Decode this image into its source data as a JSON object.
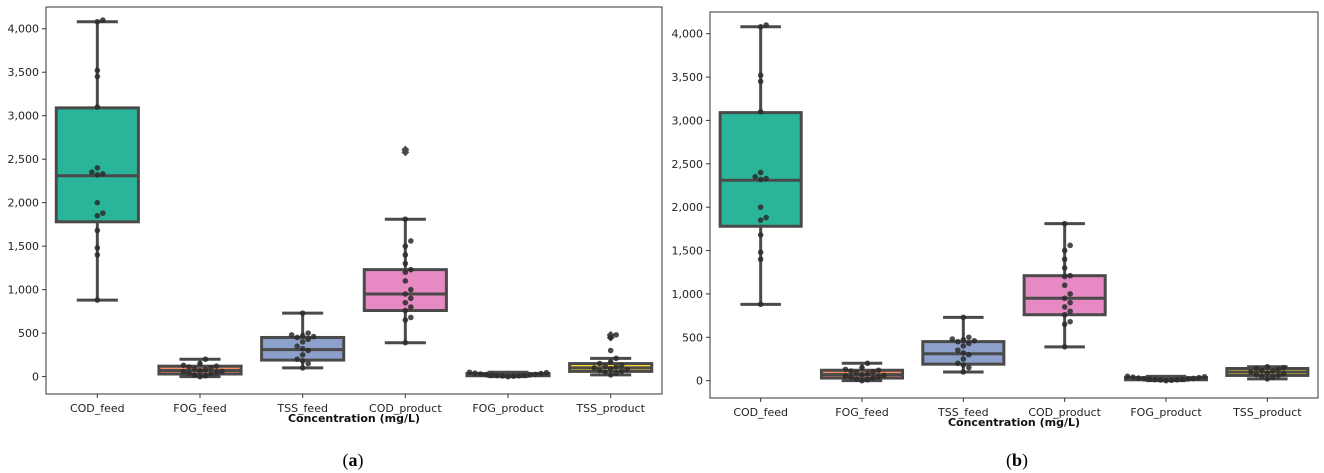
{
  "chart_data": [
    {
      "type": "box",
      "panel_label": {
        "open": "(",
        "letter": "a",
        "close": ")"
      },
      "xlabel": "Concentration (mg/L)",
      "ylabel": "",
      "ylim": [
        -200,
        4250
      ],
      "yticks": [
        0,
        500,
        1000,
        1500,
        2000,
        2500,
        3000,
        3500,
        4000
      ],
      "ytick_labels": [
        "0",
        "500",
        "1,000",
        "1,500",
        "2,000",
        "2,500",
        "3,000",
        "3,500",
        "4,000"
      ],
      "grid": false,
      "categories": [
        "COD_feed",
        "FOG_feed",
        "TSS_feed",
        "COD_product",
        "FOG_product",
        "TSS_product"
      ],
      "boxes": [
        {
          "category": "COD_feed",
          "color": "#2ab59a",
          "whislo": 880,
          "q1": 1780,
          "med": 2310,
          "q3": 3090,
          "whishi": 4080,
          "fliers": [],
          "points": [
            880,
            1400,
            1480,
            1680,
            1850,
            1880,
            2000,
            2320,
            2330,
            2350,
            2400,
            3100,
            3450,
            3520,
            4080,
            4100
          ]
        },
        {
          "category": "FOG_feed",
          "color": "#fb8d62",
          "whislo": 0,
          "q1": 30,
          "med": 70,
          "q3": 120,
          "whishi": 200,
          "fliers": [],
          "points": [
            0,
            10,
            20,
            30,
            40,
            45,
            55,
            60,
            70,
            80,
            90,
            100,
            110,
            120,
            130,
            150,
            200
          ]
        },
        {
          "category": "TSS_feed",
          "color": "#8da0cb",
          "whislo": 100,
          "q1": 190,
          "med": 310,
          "q3": 450,
          "whishi": 730,
          "fliers": [],
          "points": [
            100,
            150,
            180,
            200,
            250,
            300,
            320,
            350,
            400,
            430,
            450,
            460,
            470,
            480,
            500,
            730
          ]
        },
        {
          "category": "COD_product",
          "color": "#e78ac3",
          "whislo": 390,
          "q1": 760,
          "med": 950,
          "q3": 1230,
          "whishi": 1810,
          "fliers": [
            2580,
            2610
          ],
          "points": [
            390,
            650,
            680,
            760,
            800,
            850,
            900,
            950,
            1000,
            1100,
            1200,
            1230,
            1300,
            1400,
            1500,
            1560,
            1810
          ]
        },
        {
          "category": "FOG_product",
          "color": "#a6d854",
          "whislo": 0,
          "q1": 10,
          "med": 20,
          "q3": 35,
          "whishi": 50,
          "fliers": [],
          "points": [
            0,
            5,
            8,
            10,
            12,
            15,
            18,
            20,
            22,
            25,
            30,
            35,
            40,
            45,
            50
          ]
        },
        {
          "category": "TSS_product",
          "color": "#ffd92f",
          "whislo": 20,
          "q1": 60,
          "med": 100,
          "q3": 150,
          "whishi": 210,
          "fliers": [
            450,
            480
          ],
          "points": [
            20,
            40,
            50,
            60,
            70,
            80,
            90,
            100,
            110,
            120,
            130,
            150,
            170,
            210,
            300,
            450,
            480
          ]
        }
      ]
    },
    {
      "type": "box",
      "panel_label": {
        "open": "(",
        "letter": "b",
        "close": ")"
      },
      "xlabel": "Concentration (mg/L)",
      "ylabel": "",
      "ylim": [
        -200,
        4250
      ],
      "yticks": [
        0,
        500,
        1000,
        1500,
        2000,
        2500,
        3000,
        3500,
        4000
      ],
      "ytick_labels": [
        "0",
        "500",
        "1,000",
        "1,500",
        "2,000",
        "2,500",
        "3,000",
        "3,500",
        "4,000"
      ],
      "grid": false,
      "categories": [
        "COD_feed",
        "FOG_feed",
        "TSS_feed",
        "COD_product",
        "FOG_product",
        "TSS_product"
      ],
      "boxes": [
        {
          "category": "COD_feed",
          "color": "#2ab59a",
          "whislo": 880,
          "q1": 1780,
          "med": 2310,
          "q3": 3090,
          "whishi": 4080,
          "fliers": [],
          "points": [
            880,
            1400,
            1480,
            1680,
            1850,
            1880,
            2000,
            2320,
            2330,
            2350,
            2400,
            3100,
            3450,
            3520,
            4080,
            4100
          ]
        },
        {
          "category": "FOG_feed",
          "color": "#fb8d62",
          "whislo": 0,
          "q1": 30,
          "med": 70,
          "q3": 120,
          "whishi": 200,
          "fliers": [],
          "points": [
            0,
            10,
            20,
            30,
            40,
            45,
            55,
            60,
            70,
            80,
            90,
            100,
            110,
            120,
            130,
            150,
            200
          ]
        },
        {
          "category": "TSS_feed",
          "color": "#8da0cb",
          "whislo": 100,
          "q1": 190,
          "med": 310,
          "q3": 450,
          "whishi": 730,
          "fliers": [],
          "points": [
            100,
            150,
            180,
            200,
            250,
            300,
            320,
            350,
            400,
            430,
            450,
            460,
            470,
            480,
            500,
            730
          ]
        },
        {
          "category": "COD_product",
          "color": "#e78ac3",
          "whislo": 390,
          "q1": 760,
          "med": 950,
          "q3": 1210,
          "whishi": 1810,
          "fliers": [],
          "points": [
            390,
            650,
            680,
            760,
            800,
            850,
            900,
            950,
            1000,
            1100,
            1200,
            1210,
            1300,
            1400,
            1500,
            1560,
            1810
          ]
        },
        {
          "category": "FOG_product",
          "color": "#a6d854",
          "whislo": 0,
          "q1": 10,
          "med": 20,
          "q3": 35,
          "whishi": 50,
          "fliers": [],
          "points": [
            0,
            5,
            8,
            10,
            12,
            15,
            18,
            20,
            22,
            25,
            30,
            35,
            40,
            45,
            50
          ]
        },
        {
          "category": "TSS_product",
          "color": "#ffd92f",
          "whislo": 20,
          "q1": 60,
          "med": 100,
          "q3": 140,
          "whishi": 160,
          "fliers": [],
          "points": [
            20,
            40,
            50,
            60,
            70,
            80,
            90,
            100,
            110,
            120,
            130,
            140,
            150,
            160
          ]
        }
      ]
    }
  ]
}
